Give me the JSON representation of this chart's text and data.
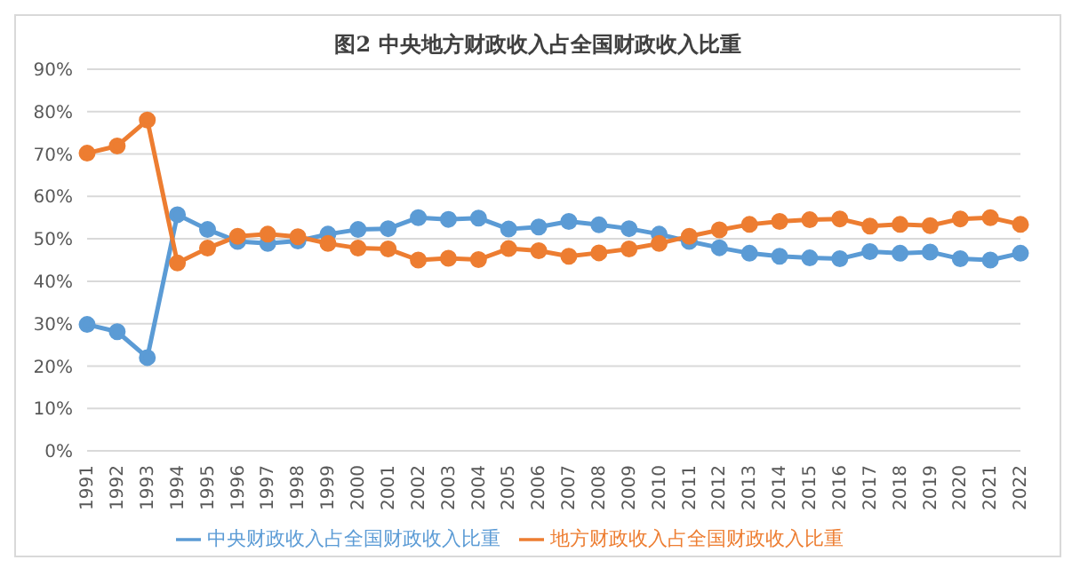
{
  "chart_data": {
    "type": "line",
    "title": "图2  中央地方财政收入占全国财政收入比重",
    "categories": [
      "1991",
      "1992",
      "1993",
      "1994",
      "1995",
      "1996",
      "1997",
      "1998",
      "1999",
      "2000",
      "2001",
      "2002",
      "2003",
      "2004",
      "2005",
      "2006",
      "2007",
      "2008",
      "2009",
      "2010",
      "2011",
      "2012",
      "2013",
      "2014",
      "2015",
      "2016",
      "2017",
      "2018",
      "2019",
      "2020",
      "2021",
      "2022"
    ],
    "series": [
      {
        "name": "中央财政收入占全国财政收入比重",
        "color": "#5b9bd5",
        "values": [
          29.8,
          28.1,
          22.0,
          55.7,
          52.2,
          49.4,
          48.9,
          49.5,
          51.1,
          52.2,
          52.4,
          55.0,
          54.6,
          54.9,
          52.3,
          52.8,
          54.1,
          53.3,
          52.4,
          51.1,
          49.4,
          47.9,
          46.6,
          45.9,
          45.5,
          45.3,
          47.0,
          46.6,
          46.9,
          45.3,
          45.0,
          46.6
        ]
      },
      {
        "name": "地方财政收入占全国财政收入比重",
        "color": "#ed7d31",
        "values": [
          70.2,
          71.9,
          78.0,
          44.3,
          47.8,
          50.6,
          51.1,
          50.5,
          48.9,
          47.8,
          47.6,
          45.0,
          45.4,
          45.1,
          47.7,
          47.2,
          45.9,
          46.7,
          47.6,
          48.9,
          50.6,
          52.1,
          53.4,
          54.1,
          54.5,
          54.7,
          53.0,
          53.4,
          53.1,
          54.7,
          55.0,
          53.4
        ]
      }
    ],
    "ylim": [
      0,
      90
    ],
    "yticks": [
      {
        "value": 0,
        "label": "0%"
      },
      {
        "value": 10,
        "label": "10%"
      },
      {
        "value": 20,
        "label": "20%"
      },
      {
        "value": 30,
        "label": "30%"
      },
      {
        "value": 40,
        "label": "40%"
      },
      {
        "value": 50,
        "label": "50%"
      },
      {
        "value": 60,
        "label": "60%"
      },
      {
        "value": 70,
        "label": "70%"
      },
      {
        "value": 80,
        "label": "80%"
      },
      {
        "value": 90,
        "label": "90%"
      }
    ],
    "grid": "y",
    "legend": "bottom",
    "marker": "circle",
    "line_style": "solid"
  }
}
